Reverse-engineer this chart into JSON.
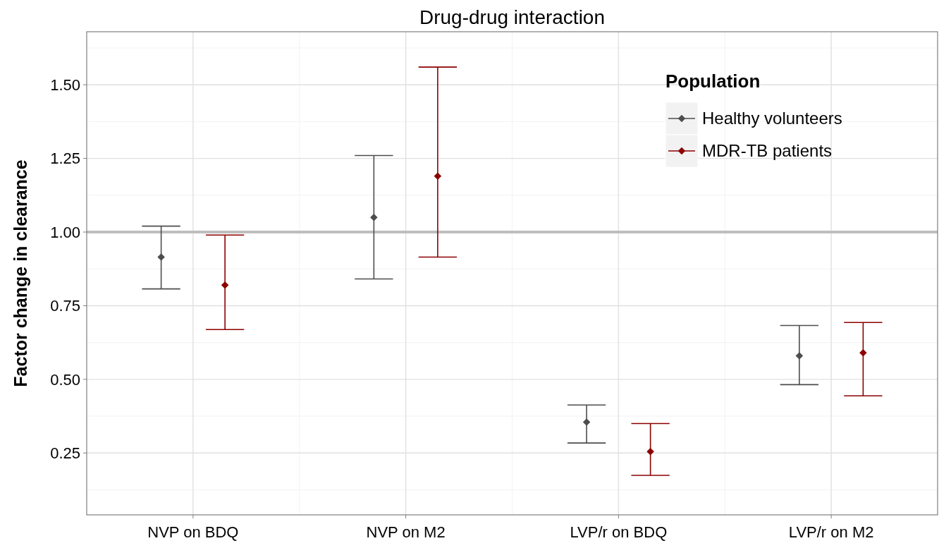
{
  "chart_data": {
    "type": "scatter",
    "title": "Drug-drug interaction",
    "ylabel": "Factor change in clearance",
    "categories": [
      "NVP on BDQ",
      "NVP on M2",
      "LVP/r on BDQ",
      "LVP/r on M2"
    ],
    "series": [
      {
        "name": "Healthy volunteers",
        "color": "#4d4d4d",
        "values": [
          0.915,
          1.05,
          0.355,
          0.58
        ],
        "errors": [
          [
            0.807,
            1.02
          ],
          [
            0.841,
            1.26
          ],
          [
            0.284,
            0.413
          ],
          [
            0.482,
            0.683
          ]
        ]
      },
      {
        "name": "MDR-TB patients",
        "color": "#8b0000",
        "values": [
          0.82,
          1.19,
          0.255,
          0.59
        ],
        "errors": [
          [
            0.669,
            0.99
          ],
          [
            0.915,
            1.56
          ],
          [
            0.174,
            0.35
          ],
          [
            0.444,
            0.693
          ]
        ]
      }
    ],
    "legend_title": "Population",
    "legend": "top right",
    "marker": "diamond",
    "ylim": [
      0.04,
      1.68
    ],
    "yticks": [
      {
        "value": 0.25,
        "label": "0.25"
      },
      {
        "value": 0.5,
        "label": "0.50"
      },
      {
        "value": 0.75,
        "label": "0.75"
      },
      {
        "value": 1,
        "label": "1.00"
      },
      {
        "value": 1.25,
        "label": "1.25"
      },
      {
        "value": 1.5,
        "label": "1.50"
      }
    ],
    "grid": true,
    "ref_lines": [
      {
        "axis": "y",
        "value": 1,
        "color": "#bebebe"
      }
    ]
  }
}
